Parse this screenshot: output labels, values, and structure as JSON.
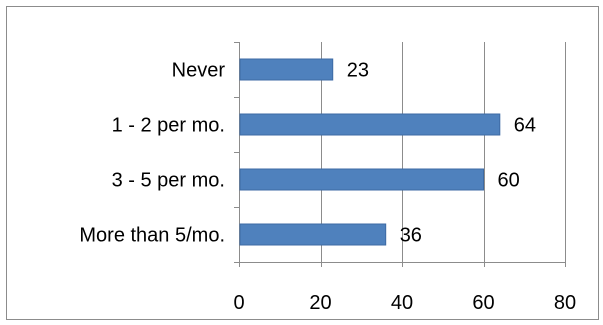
{
  "chart_data": {
    "type": "bar",
    "orientation": "horizontal",
    "title": "",
    "xlabel": "",
    "ylabel": "",
    "categories": [
      "Never",
      "1 - 2 per mo.",
      "3 - 5 per mo.",
      "More than 5/mo."
    ],
    "values": [
      23,
      64,
      60,
      36
    ],
    "xlim": [
      0,
      80
    ],
    "xticks": [
      0,
      20,
      40,
      60,
      80
    ],
    "grid": "vertical",
    "legend": "none",
    "bar_color": "#4f81bd",
    "bar_edge_color": "#3c6aa4",
    "data_labels": true
  }
}
